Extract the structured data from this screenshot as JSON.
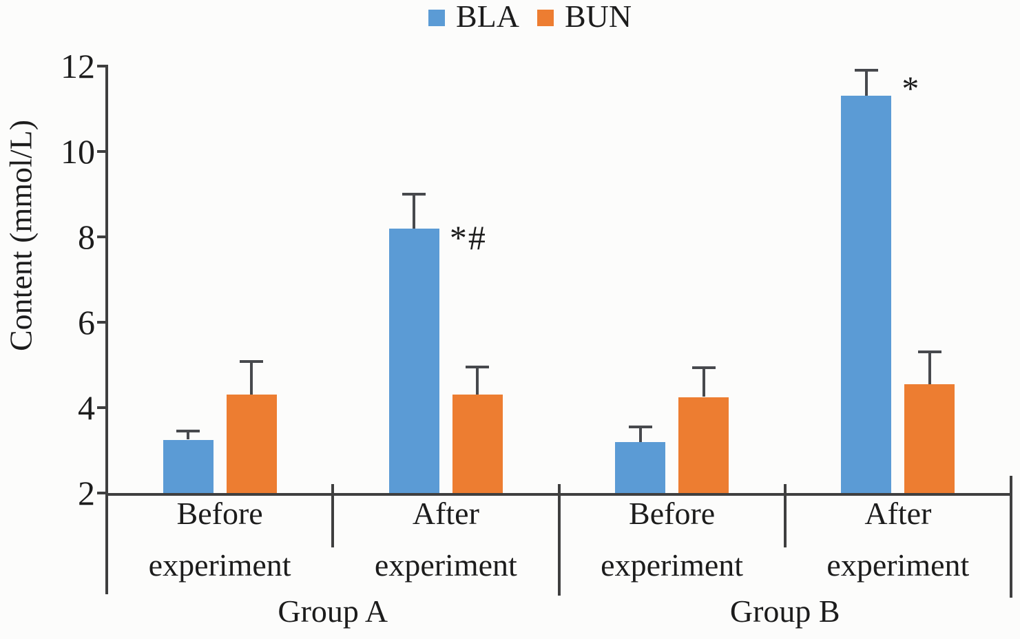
{
  "legend": {
    "entries": [
      {
        "label": "BLA",
        "color": "#5B9BD5"
      },
      {
        "label": "BUN",
        "color": "#ED7D31"
      }
    ]
  },
  "chart_data": {
    "type": "bar",
    "title": "",
    "ylabel": "Content (mmol/L)",
    "xlabel": "",
    "ylim": [
      2,
      12
    ],
    "yticks": [
      2,
      4,
      6,
      8,
      10,
      12
    ],
    "grid": false,
    "legend_position": "top-center",
    "error_bars": "upper",
    "categories": [
      "Group A - Before experiment",
      "Group A - After experiment",
      "Group B - Before experiment",
      "Group B - After experiment"
    ],
    "x_tier1": [
      "Before",
      "After",
      "Before",
      "After"
    ],
    "x_tier2": [
      "experiment",
      "experiment",
      "experiment",
      "experiment"
    ],
    "x_groups": [
      "Group A",
      "Group B"
    ],
    "series": [
      {
        "name": "BLA",
        "color": "#5B9BD5",
        "values": [
          3.25,
          8.2,
          3.2,
          11.3
        ],
        "errors": [
          0.2,
          0.8,
          0.35,
          0.6
        ],
        "annotations": [
          "",
          "*#",
          "",
          "*"
        ]
      },
      {
        "name": "BUN",
        "color": "#ED7D31",
        "values": [
          4.3,
          4.3,
          4.25,
          4.55
        ],
        "errors": [
          0.78,
          0.65,
          0.68,
          0.75
        ],
        "annotations": [
          "",
          "",
          "",
          ""
        ]
      }
    ]
  }
}
